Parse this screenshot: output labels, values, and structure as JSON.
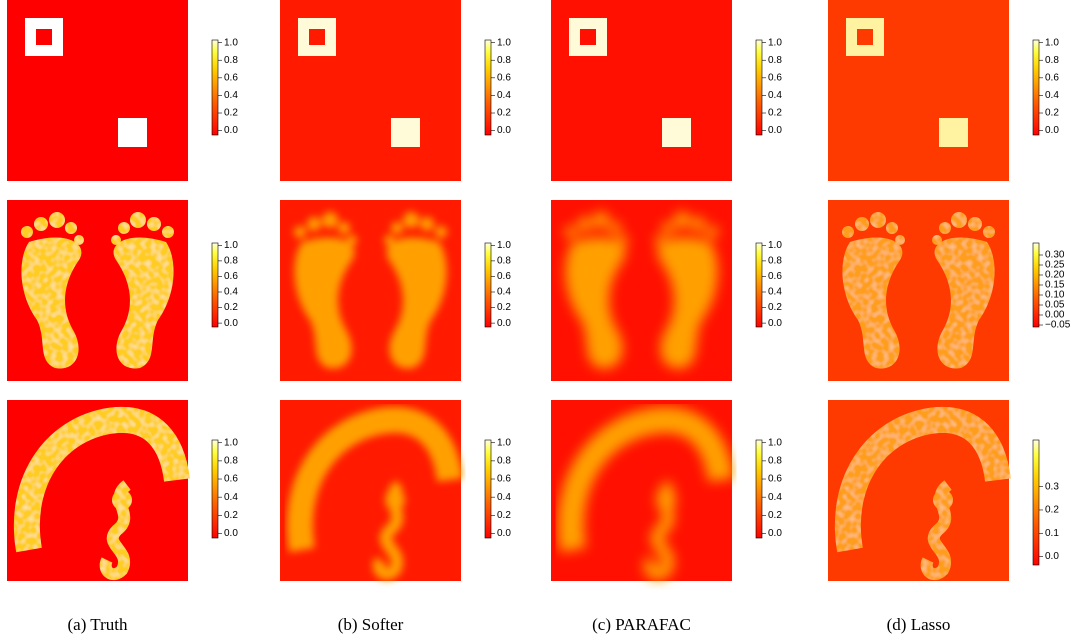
{
  "figure": {
    "columns": [
      {
        "caption": "(a) Truth",
        "colorbars": [
          {
            "lim": [
              -0.05,
              1.03
            ],
            "ticks": [
              {
                "value": 0,
                "label": "0.0"
              },
              {
                "value": 0.2,
                "label": "0.2"
              },
              {
                "value": 0.4,
                "label": "0.4"
              },
              {
                "value": 0.6,
                "label": "0.6"
              },
              {
                "value": 0.8,
                "label": "0.8"
              },
              {
                "value": 1,
                "label": "1.0"
              }
            ]
          },
          {
            "lim": [
              -0.05,
              1.03
            ],
            "ticks": [
              {
                "value": 0,
                "label": "0.0"
              },
              {
                "value": 0.2,
                "label": "0.2"
              },
              {
                "value": 0.4,
                "label": "0.4"
              },
              {
                "value": 0.6,
                "label": "0.6"
              },
              {
                "value": 0.8,
                "label": "0.8"
              },
              {
                "value": 1,
                "label": "1.0"
              }
            ]
          },
          {
            "lim": [
              -0.05,
              1.03
            ],
            "ticks": [
              {
                "value": 0,
                "label": "0.0"
              },
              {
                "value": 0.2,
                "label": "0.2"
              },
              {
                "value": 0.4,
                "label": "0.4"
              },
              {
                "value": 0.6,
                "label": "0.6"
              },
              {
                "value": 0.8,
                "label": "0.8"
              },
              {
                "value": 1,
                "label": "1.0"
              }
            ]
          }
        ]
      },
      {
        "caption": "(b) Softer",
        "colorbars": [
          {
            "lim": [
              -0.05,
              1.03
            ],
            "ticks": [
              {
                "value": 0,
                "label": "0.0"
              },
              {
                "value": 0.2,
                "label": "0.2"
              },
              {
                "value": 0.4,
                "label": "0.4"
              },
              {
                "value": 0.6,
                "label": "0.6"
              },
              {
                "value": 0.8,
                "label": "0.8"
              },
              {
                "value": 1,
                "label": "1.0"
              }
            ]
          },
          {
            "lim": [
              -0.05,
              1.03
            ],
            "ticks": [
              {
                "value": 0,
                "label": "0.0"
              },
              {
                "value": 0.2,
                "label": "0.2"
              },
              {
                "value": 0.4,
                "label": "0.4"
              },
              {
                "value": 0.6,
                "label": "0.6"
              },
              {
                "value": 0.8,
                "label": "0.8"
              },
              {
                "value": 1,
                "label": "1.0"
              }
            ]
          },
          {
            "lim": [
              -0.05,
              1.03
            ],
            "ticks": [
              {
                "value": 0,
                "label": "0.0"
              },
              {
                "value": 0.2,
                "label": "0.2"
              },
              {
                "value": 0.4,
                "label": "0.4"
              },
              {
                "value": 0.6,
                "label": "0.6"
              },
              {
                "value": 0.8,
                "label": "0.8"
              },
              {
                "value": 1,
                "label": "1.0"
              }
            ]
          }
        ]
      },
      {
        "caption": "(c) PARAFAC",
        "colorbars": [
          {
            "lim": [
              -0.05,
              1.03
            ],
            "ticks": [
              {
                "value": 0,
                "label": "0.0"
              },
              {
                "value": 0.2,
                "label": "0.2"
              },
              {
                "value": 0.4,
                "label": "0.4"
              },
              {
                "value": 0.6,
                "label": "0.6"
              },
              {
                "value": 0.8,
                "label": "0.8"
              },
              {
                "value": 1,
                "label": "1.0"
              }
            ]
          },
          {
            "lim": [
              -0.05,
              1.03
            ],
            "ticks": [
              {
                "value": 0,
                "label": "0.0"
              },
              {
                "value": 0.2,
                "label": "0.2"
              },
              {
                "value": 0.4,
                "label": "0.4"
              },
              {
                "value": 0.6,
                "label": "0.6"
              },
              {
                "value": 0.8,
                "label": "0.8"
              },
              {
                "value": 1,
                "label": "1.0"
              }
            ]
          },
          {
            "lim": [
              -0.05,
              1.03
            ],
            "ticks": [
              {
                "value": 0,
                "label": "0.0"
              },
              {
                "value": 0.2,
                "label": "0.2"
              },
              {
                "value": 0.4,
                "label": "0.4"
              },
              {
                "value": 0.6,
                "label": "0.6"
              },
              {
                "value": 0.8,
                "label": "0.8"
              },
              {
                "value": 1,
                "label": "1.0"
              }
            ]
          }
        ]
      },
      {
        "caption": "(d) Lasso",
        "colorbars": [
          {
            "lim": [
              -0.05,
              1.03
            ],
            "ticks": [
              {
                "value": 0,
                "label": "0.0"
              },
              {
                "value": 0.2,
                "label": "0.2"
              },
              {
                "value": 0.4,
                "label": "0.4"
              },
              {
                "value": 0.6,
                "label": "0.6"
              },
              {
                "value": 0.8,
                "label": "0.8"
              },
              {
                "value": 1,
                "label": "1.0"
              }
            ]
          },
          {
            "lim": [
              -0.06,
              0.36
            ],
            "ticks": [
              {
                "value": -0.05,
                "label": "−0.05"
              },
              {
                "value": 0,
                "label": "0.00"
              },
              {
                "value": 0.05,
                "label": "0.05"
              },
              {
                "value": 0.1,
                "label": "0.10"
              },
              {
                "value": 0.15,
                "label": "0.15"
              },
              {
                "value": 0.2,
                "label": "0.20"
              },
              {
                "value": 0.25,
                "label": "0.25"
              },
              {
                "value": 0.3,
                "label": "0.30"
              }
            ]
          },
          {
            "lim": [
              -0.036,
              0.5
            ],
            "ticks": [
              {
                "value": 0,
                "label": "0.0"
              },
              {
                "value": 0.1,
                "label": "0.1"
              },
              {
                "value": 0.2,
                "label": "0.2"
              },
              {
                "value": 0.3,
                "label": "0.3"
              }
            ]
          }
        ]
      }
    ]
  }
}
